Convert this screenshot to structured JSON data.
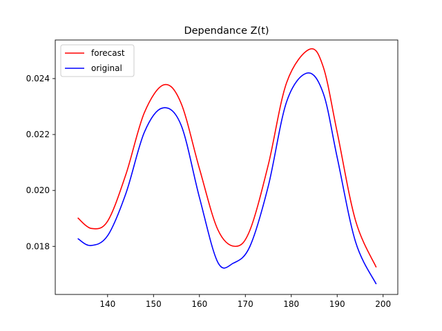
{
  "chart_data": {
    "type": "line",
    "title": "Dependance Z(t)",
    "xlabel": "",
    "ylabel": "",
    "xlim": [
      128.6,
      203.2
    ],
    "ylim": [
      0.01628,
      0.02538
    ],
    "xticks": [
      140,
      150,
      160,
      170,
      180,
      190,
      200
    ],
    "yticks": [
      0.018,
      0.02,
      0.022,
      0.024
    ],
    "xtick_labels": [
      "140",
      "150",
      "160",
      "170",
      "180",
      "190",
      "200"
    ],
    "ytick_labels": [
      "0.018",
      "0.020",
      "0.022",
      "0.024"
    ],
    "grid": false,
    "legend": "top-left",
    "series": [
      {
        "name": "forecast",
        "color": "#ff0000",
        "x": [
          133.5,
          136.5,
          140,
          144,
          148,
          152.3,
          156,
          160,
          164,
          167.8,
          171,
          175,
          179,
          184,
          187,
          190,
          194,
          198.5
        ],
        "y": [
          0.01902,
          0.01864,
          0.0189,
          0.02058,
          0.02278,
          0.02378,
          0.02312,
          0.02078,
          0.0186,
          0.018,
          0.01858,
          0.02092,
          0.02386,
          0.02505,
          0.0244,
          0.02208,
          0.01892,
          0.01725
        ]
      },
      {
        "name": "original",
        "color": "#0000ff",
        "x": [
          133.5,
          136.3,
          140,
          144,
          148,
          152,
          156,
          160,
          164,
          167.4,
          171,
          175,
          179,
          183.5,
          187,
          190,
          194,
          198.5
        ],
        "y": [
          0.01828,
          0.01803,
          0.01838,
          0.0199,
          0.02208,
          0.02295,
          0.02234,
          0.01975,
          0.01743,
          0.0174,
          0.018,
          0.02016,
          0.02318,
          0.0242,
          0.02346,
          0.02118,
          0.01816,
          0.01665
        ]
      }
    ]
  }
}
